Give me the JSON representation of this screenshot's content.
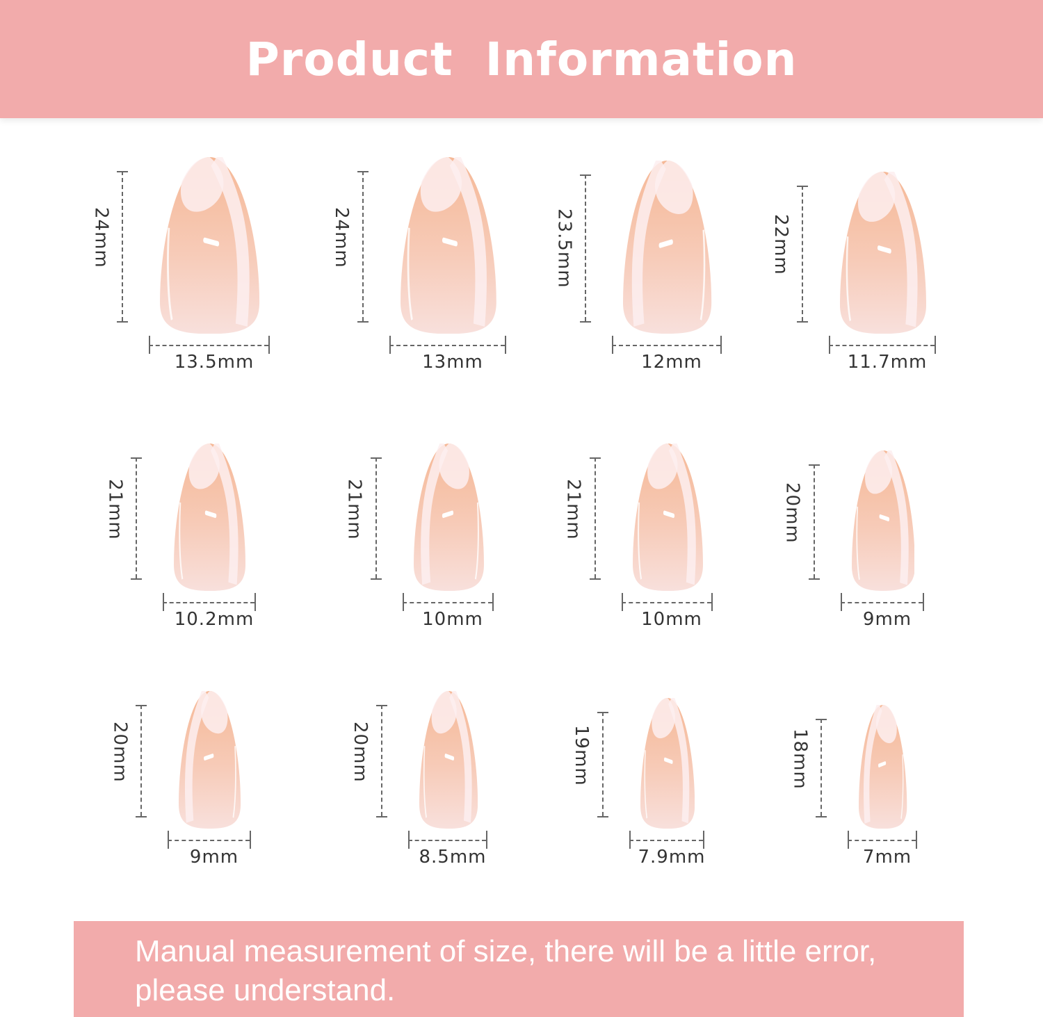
{
  "header": {
    "title": "Product  Information"
  },
  "colors": {
    "banner": "#f2abab",
    "nail_tip": "#f5b896",
    "nail_base": "#f8e0dc",
    "swirl": "#fdeef0"
  },
  "nails": [
    {
      "length": "24mm",
      "width": "13.5mm",
      "length_mm": 24,
      "width_mm": 13.5
    },
    {
      "length": "24mm",
      "width": "13mm",
      "length_mm": 24,
      "width_mm": 13
    },
    {
      "length": "23.5mm",
      "width": "12mm",
      "length_mm": 23.5,
      "width_mm": 12
    },
    {
      "length": "22mm",
      "width": "11.7mm",
      "length_mm": 22,
      "width_mm": 11.7
    },
    {
      "length": "21mm",
      "width": "10.2mm",
      "length_mm": 21,
      "width_mm": 10.2
    },
    {
      "length": "21mm",
      "width": "10mm",
      "length_mm": 21,
      "width_mm": 10
    },
    {
      "length": "21mm",
      "width": "10mm",
      "length_mm": 21,
      "width_mm": 10
    },
    {
      "length": "20mm",
      "width": "9mm",
      "length_mm": 20,
      "width_mm": 9
    },
    {
      "length": "20mm",
      "width": "9mm",
      "length_mm": 20,
      "width_mm": 9
    },
    {
      "length": "20mm",
      "width": "8.5mm",
      "length_mm": 20,
      "width_mm": 8.5
    },
    {
      "length": "19mm",
      "width": "7.9mm",
      "length_mm": 19,
      "width_mm": 7.9
    },
    {
      "length": "18mm",
      "width": "7mm",
      "length_mm": 18,
      "width_mm": 7
    }
  ],
  "footer": {
    "note": "Manual measurement of size, there will be a little error, please understand."
  }
}
